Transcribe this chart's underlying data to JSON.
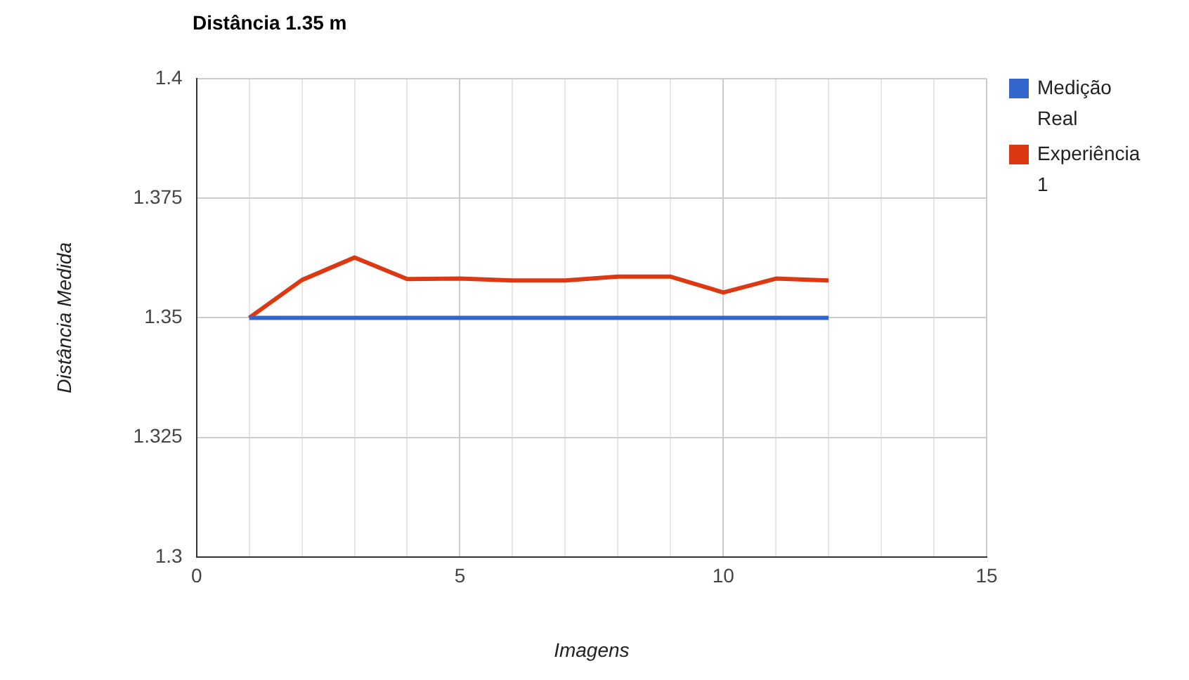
{
  "chart_data": {
    "type": "line",
    "title": "Distância 1.35 m",
    "xlabel": "Imagens",
    "ylabel": "Distância Medida",
    "x": [
      1,
      2,
      3,
      4,
      5,
      6,
      7,
      8,
      9,
      10,
      11,
      12
    ],
    "series": [
      {
        "name": "Medição Real",
        "color": "#3366cc",
        "values": [
          1.35,
          1.35,
          1.35,
          1.35,
          1.35,
          1.35,
          1.35,
          1.35,
          1.35,
          1.35,
          1.35,
          1.35
        ]
      },
      {
        "name": "Experiência 1",
        "color": "#dc3912",
        "values": [
          1.35,
          1.3579,
          1.3626,
          1.3581,
          1.3582,
          1.3578,
          1.3578,
          1.3586,
          1.3586,
          1.3553,
          1.3582,
          1.3578
        ]
      }
    ],
    "xlim": [
      0,
      15
    ],
    "xticks": [
      0,
      {
        "value": 1,
        "label": null
      },
      {
        "value": 2,
        "label": null
      },
      {
        "value": 3,
        "label": null
      },
      {
        "value": 4,
        "label": null
      },
      5,
      {
        "value": 6,
        "label": null
      },
      {
        "value": 7,
        "label": null
      },
      {
        "value": 8,
        "label": null
      },
      {
        "value": 9,
        "label": null
      },
      10,
      {
        "value": 11,
        "label": null
      },
      {
        "value": 12,
        "label": null
      },
      {
        "value": 13,
        "label": null
      },
      {
        "value": 14,
        "label": null
      },
      15
    ],
    "ylim": [
      1.3,
      1.4
    ],
    "yticks": [
      1.3,
      1.325,
      1.35,
      1.375,
      1.4
    ],
    "grid": true,
    "legend": "top right",
    "marker": "none",
    "line_style": "solid"
  }
}
